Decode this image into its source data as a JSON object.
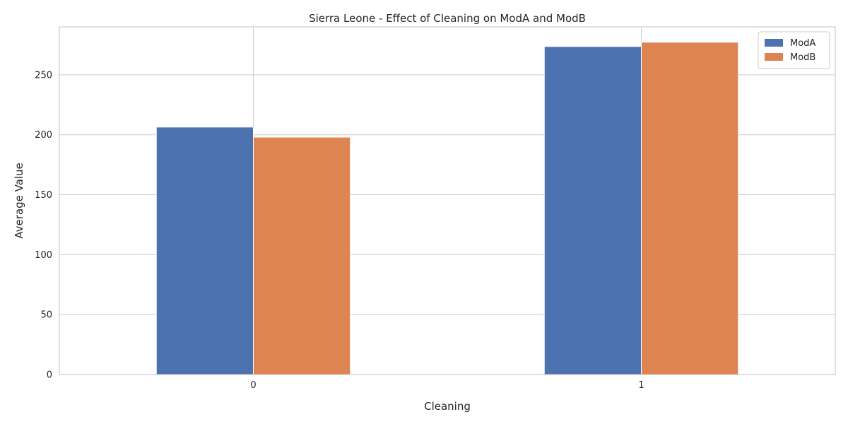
{
  "chart_data": {
    "type": "bar",
    "title": "Sierra Leone - Effect of Cleaning on ModA and ModB",
    "xlabel": "Cleaning",
    "ylabel": "Average Value",
    "categories": [
      "0",
      "1"
    ],
    "series": [
      {
        "name": "ModA",
        "values": [
          206.4,
          273.6
        ],
        "color": "#4c72b0"
      },
      {
        "name": "ModB",
        "values": [
          198.0,
          277.2
        ],
        "color": "#dd8452"
      }
    ],
    "ylim": [
      0,
      290
    ],
    "yticks": [
      0,
      50,
      100,
      150,
      200,
      250
    ],
    "grid": true,
    "legend_position": "top-right"
  }
}
